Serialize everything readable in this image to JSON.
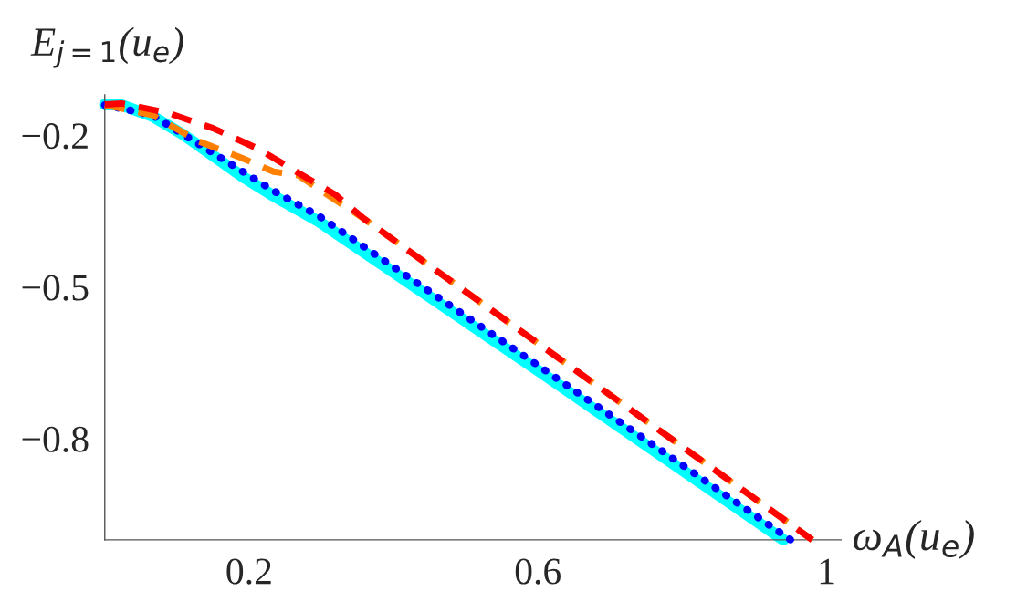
{
  "chart_data": {
    "type": "line",
    "xlabel": "ω$_{A}$(u$_{e}$)",
    "ylabel": "E$_{j=1}$(u$_{e}$)",
    "xlim": [
      0,
      1.02
    ],
    "ylim": [
      -1.0,
      -0.12
    ],
    "xticks": [
      0.2,
      0.6,
      1
    ],
    "yticks": [
      {
        "value": -0.2,
        "label": "−0.2"
      },
      {
        "value": -0.5,
        "label": "−0.5"
      },
      {
        "value": -0.8,
        "label": "−0.8"
      }
    ],
    "grid": false,
    "legend": false,
    "series": [
      {
        "color": "#00ffff",
        "line_style": "solid",
        "x": [
          0,
          0.023,
          0.066,
          0.108,
          0.15,
          0.19,
          0.234,
          0.297,
          0.6,
          0.94
        ],
        "values": [
          -0.139,
          -0.14,
          -0.162,
          -0.198,
          -0.24,
          -0.281,
          -0.32,
          -0.371,
          -0.665,
          -1.0
        ]
      },
      {
        "color": "#0000ff",
        "line_style": "dotted",
        "x": [
          0,
          0.066,
          0.15,
          0.234,
          0.297,
          0.6,
          0.95
        ],
        "values": [
          -0.14,
          -0.16,
          -0.235,
          -0.31,
          -0.36,
          -0.655,
          -1.0
        ]
      },
      {
        "color": "#ff8000",
        "line_style": "dashed",
        "x": [
          0,
          0.066,
          0.13,
          0.19,
          0.234,
          0.268,
          0.29,
          0.36,
          0.98
        ],
        "values": [
          -0.14,
          -0.16,
          -0.212,
          -0.245,
          -0.272,
          -0.279,
          -0.3,
          -0.366,
          -1.0
        ]
      },
      {
        "color": "#ff0000",
        "line_style": "dashed",
        "x": [
          0,
          0.023,
          0.086,
          0.15,
          0.213,
          0.263,
          0.319,
          0.36,
          0.98
        ],
        "values": [
          -0.139,
          -0.137,
          -0.155,
          -0.186,
          -0.227,
          -0.27,
          -0.317,
          -0.366,
          -1.0
        ]
      }
    ]
  }
}
